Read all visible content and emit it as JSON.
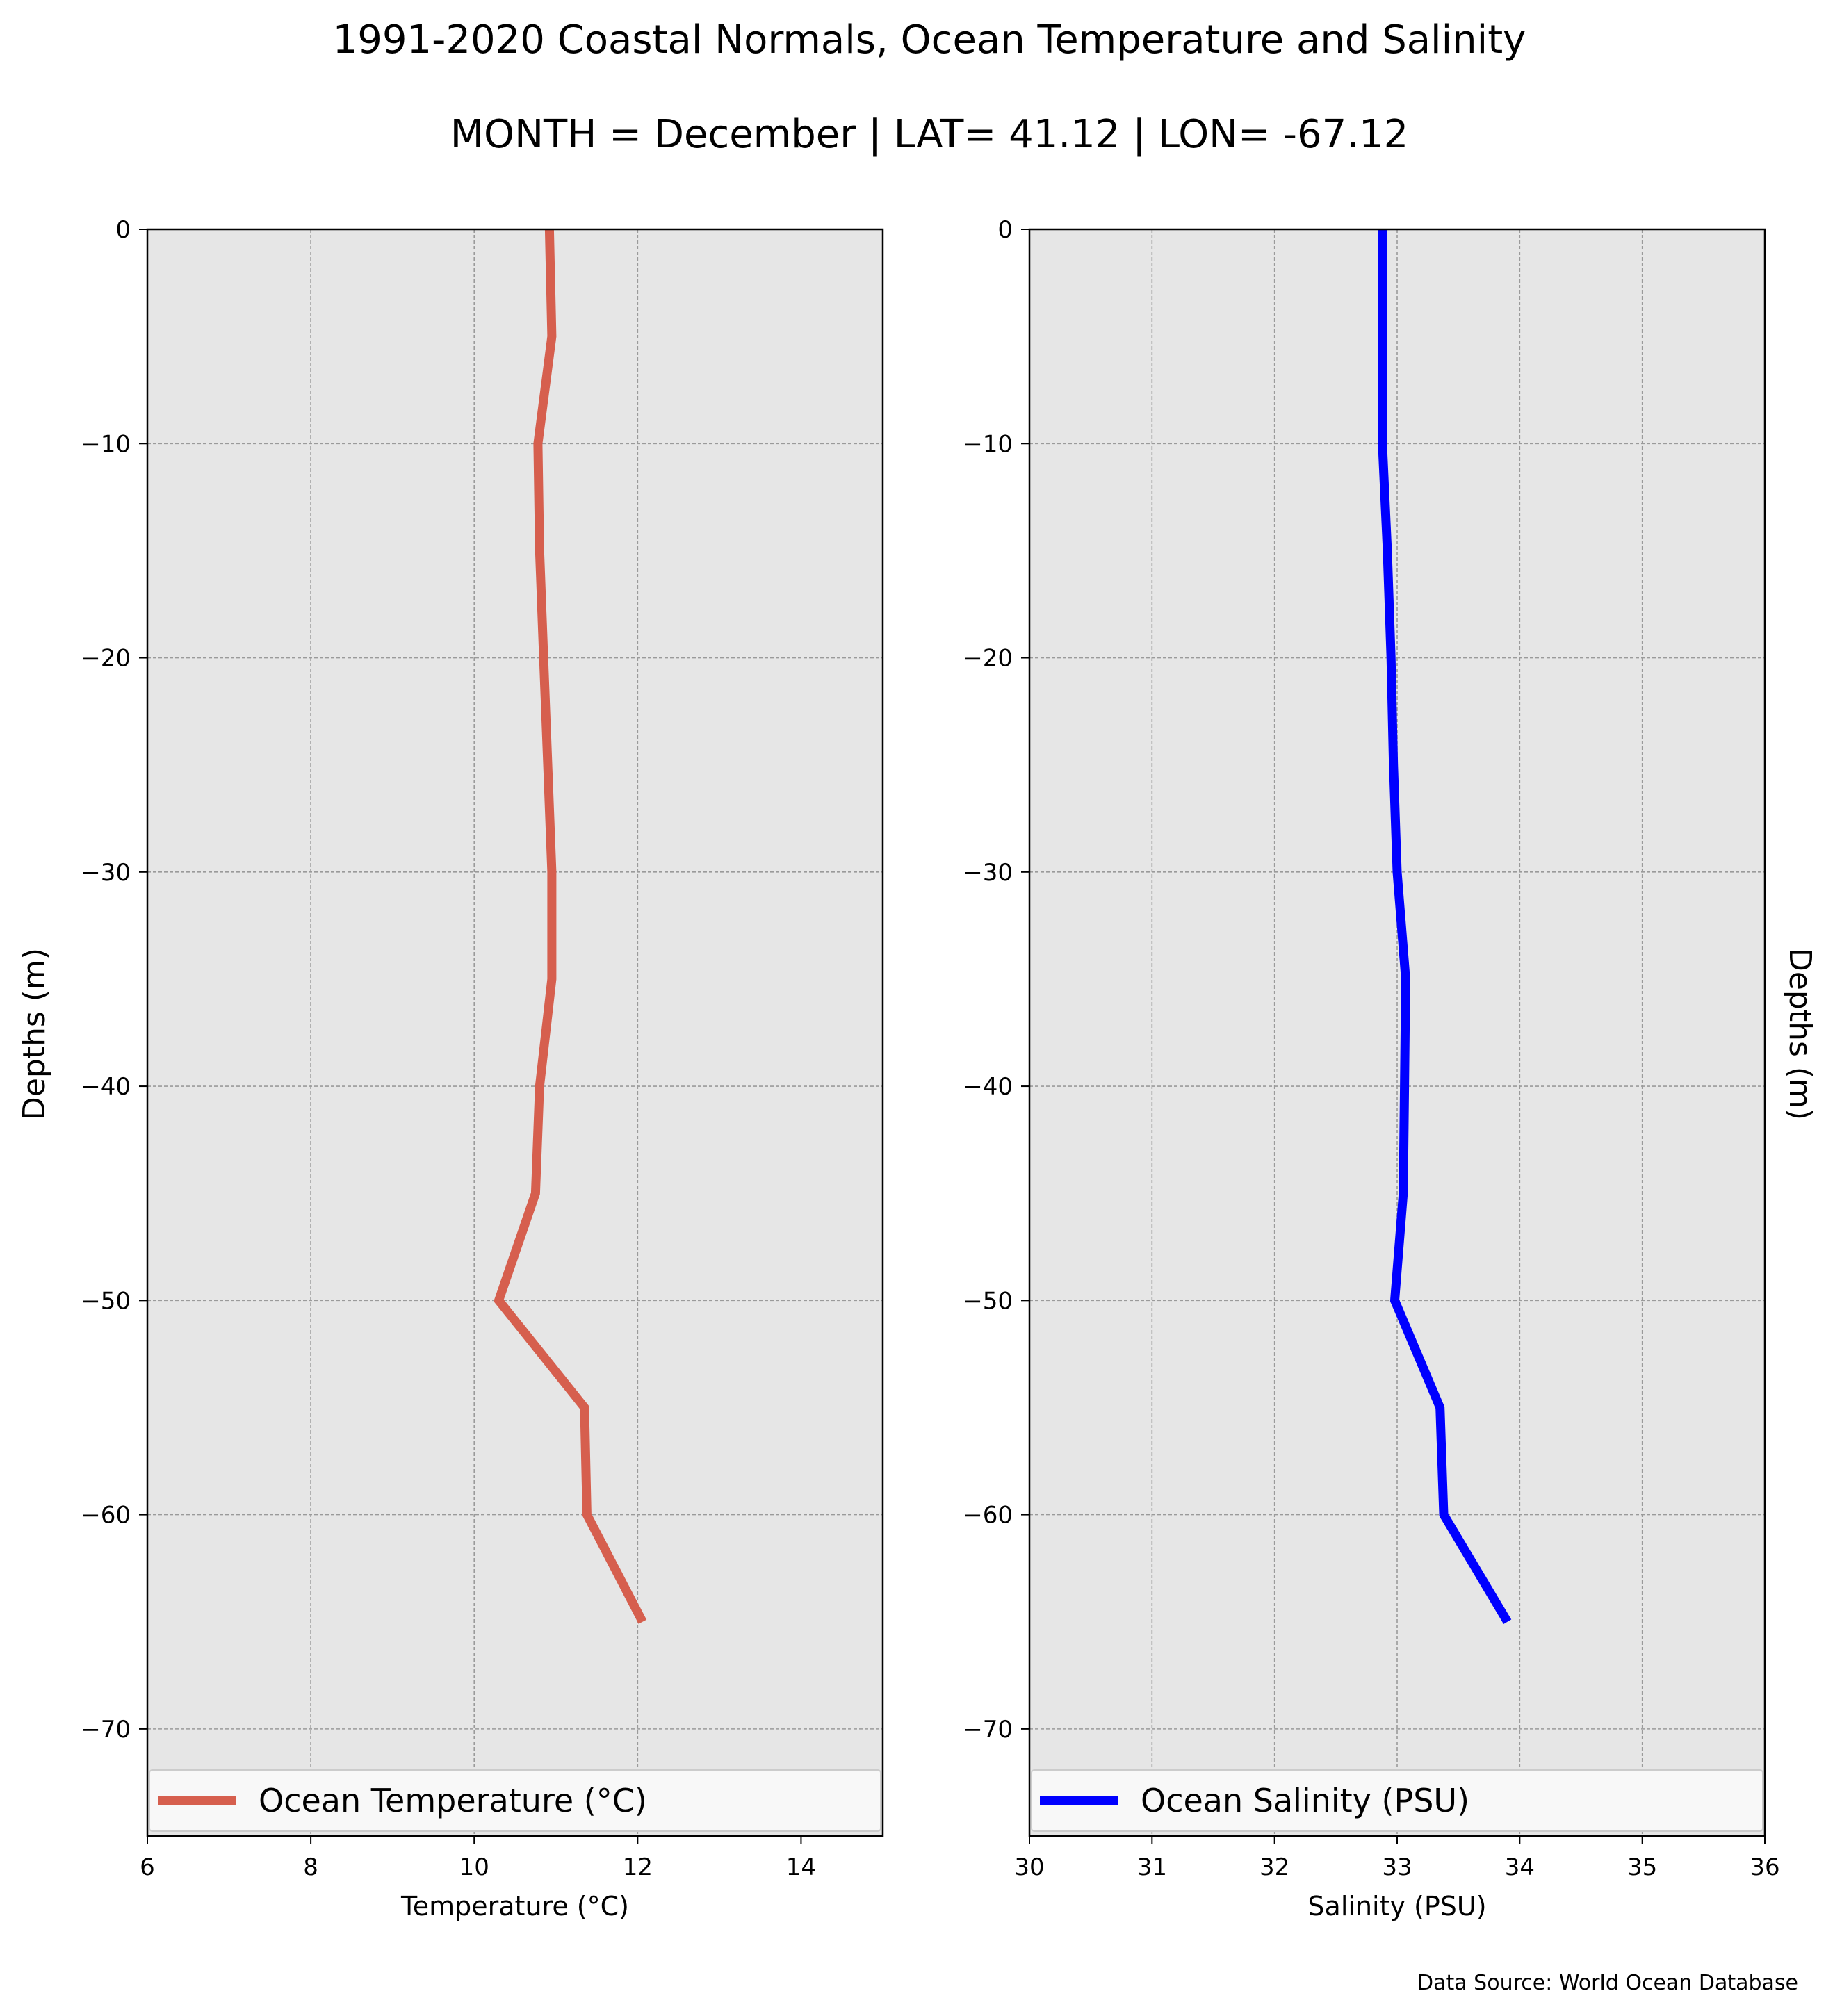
{
  "figure": {
    "title": "1991-2020 Coastal Normals, Ocean Temperature and Salinity",
    "subtitle": "MONTH = December | LAT= 41.12 | LON= -67.12",
    "source": "Data Source: World Ocean Database",
    "ylabel": "Depths (m)",
    "background": "#e6e6e6"
  },
  "chart_data": [
    {
      "type": "line",
      "xlabel": "Temperature (°C)",
      "ylabel": "Depths (m)",
      "xlim": [
        6,
        15
      ],
      "ylim": [
        -75,
        0
      ],
      "xticks": [
        6,
        8,
        10,
        12,
        14
      ],
      "xtick_labels": [
        "6",
        "8",
        "10",
        "12",
        "14"
      ],
      "yticks": [
        0,
        -10,
        -20,
        -30,
        -40,
        -50,
        -60,
        -70
      ],
      "ytick_labels": [
        "0",
        "−10",
        "−20",
        "−30",
        "−40",
        "−50",
        "−60",
        "−70"
      ],
      "grid": true,
      "legend_position": "bottom",
      "series": [
        {
          "name": "Ocean Temperature (°C)",
          "color": "#d65f4e",
          "x": [
            10.92,
            10.95,
            10.78,
            10.8,
            10.85,
            10.9,
            10.95,
            10.95,
            10.8,
            10.75,
            10.3,
            11.35,
            11.38,
            12.06
          ],
          "y": [
            0,
            -5,
            -10,
            -15,
            -20,
            -25,
            -30,
            -35,
            -40,
            -45,
            -50,
            -55,
            -60,
            -65
          ]
        }
      ]
    },
    {
      "type": "line",
      "xlabel": "Salinity (PSU)",
      "ylabel": "Depths (m)",
      "xlim": [
        30,
        36
      ],
      "ylim": [
        -75,
        0
      ],
      "xticks": [
        30,
        31,
        32,
        33,
        34,
        35,
        36
      ],
      "xtick_labels": [
        "30",
        "31",
        "32",
        "33",
        "34",
        "35",
        "36"
      ],
      "yticks": [
        0,
        -10,
        -20,
        -30,
        -40,
        -50,
        -60,
        -70
      ],
      "ytick_labels": [
        "0",
        "−10",
        "−20",
        "−30",
        "−40",
        "−50",
        "−60",
        "−70"
      ],
      "grid": true,
      "legend_position": "bottom",
      "series": [
        {
          "name": "Ocean Salinity (PSU)",
          "color": "#0000ff",
          "x": [
            32.88,
            32.88,
            32.88,
            32.92,
            32.95,
            32.97,
            33.0,
            33.07,
            33.06,
            33.05,
            32.98,
            33.35,
            33.38,
            33.9
          ],
          "y": [
            0,
            -5,
            -10,
            -15,
            -20,
            -25,
            -30,
            -35,
            -40,
            -45,
            -50,
            -55,
            -60,
            -65
          ]
        }
      ]
    }
  ]
}
